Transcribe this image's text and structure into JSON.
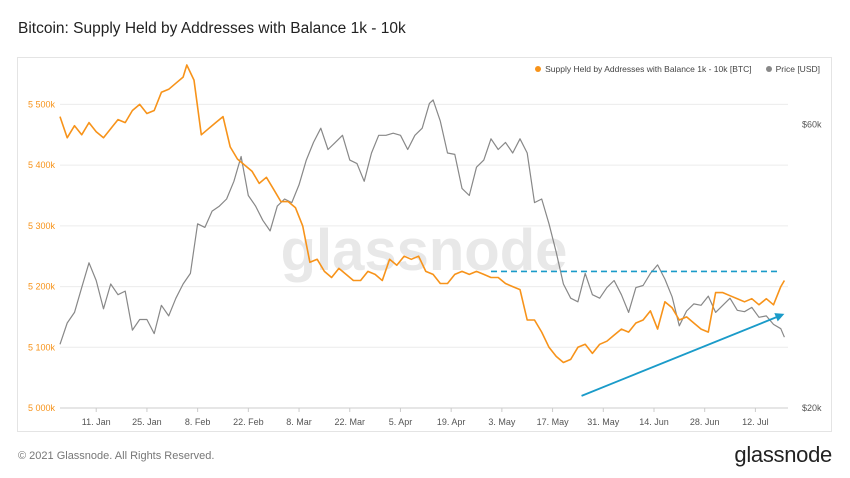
{
  "title": "Bitcoin: Supply Held by Addresses with Balance 1k - 10k",
  "footer": "© 2021 Glassnode. All Rights Reserved.",
  "brand": "glassnode",
  "watermark": "glassnode",
  "colors": {
    "supply": "#f7931a",
    "price": "#888888",
    "accent": "#1a9bc9",
    "grid": "#ececec"
  },
  "legend": {
    "supply_label": "Supply Held by Addresses with Balance 1k - 10k [BTC]",
    "price_label": "Price [USD]"
  },
  "chart_data": {
    "type": "line",
    "x_tick_labels": [
      "11. Jan",
      "25. Jan",
      "8. Feb",
      "22. Feb",
      "8. Mar",
      "22. Mar",
      "5. Apr",
      "19. Apr",
      "3. May",
      "17. May",
      "31. May",
      "14. Jun",
      "28. Jun",
      "12. Jul"
    ],
    "y_left": {
      "ticks": [
        5000000,
        5100000,
        5200000,
        5300000,
        5400000,
        5500000
      ],
      "tick_labels": [
        "5 000k",
        "5 100k",
        "5 200k",
        "5 300k",
        "5 400k",
        "5 500k"
      ],
      "range": [
        5000000,
        5560000
      ]
    },
    "y_right": {
      "ticks": [
        20000,
        60000
      ],
      "tick_labels": [
        "$20k",
        "$60k"
      ],
      "range": [
        20000,
        68000
      ]
    },
    "x_range": [
      "2021-01-01",
      "2021-07-21"
    ],
    "series": [
      {
        "name": "Supply Held by Addresses with Balance 1k - 10k [BTC]",
        "axis": "left",
        "x": [
          "2021-01-01",
          "2021-01-03",
          "2021-01-05",
          "2021-01-07",
          "2021-01-09",
          "2021-01-11",
          "2021-01-13",
          "2021-01-15",
          "2021-01-17",
          "2021-01-19",
          "2021-01-21",
          "2021-01-23",
          "2021-01-25",
          "2021-01-27",
          "2021-01-29",
          "2021-01-31",
          "2021-02-02",
          "2021-02-04",
          "2021-02-05",
          "2021-02-07",
          "2021-02-09",
          "2021-02-11",
          "2021-02-13",
          "2021-02-15",
          "2021-02-17",
          "2021-02-19",
          "2021-02-21",
          "2021-02-23",
          "2021-02-25",
          "2021-02-27",
          "2021-03-01",
          "2021-03-03",
          "2021-03-05",
          "2021-03-07",
          "2021-03-09",
          "2021-03-11",
          "2021-03-13",
          "2021-03-15",
          "2021-03-17",
          "2021-03-19",
          "2021-03-21",
          "2021-03-23",
          "2021-03-25",
          "2021-03-27",
          "2021-03-29",
          "2021-03-31",
          "2021-04-02",
          "2021-04-04",
          "2021-04-06",
          "2021-04-08",
          "2021-04-10",
          "2021-04-12",
          "2021-04-14",
          "2021-04-16",
          "2021-04-18",
          "2021-04-20",
          "2021-04-22",
          "2021-04-24",
          "2021-04-26",
          "2021-04-28",
          "2021-04-30",
          "2021-05-02",
          "2021-05-04",
          "2021-05-06",
          "2021-05-08",
          "2021-05-10",
          "2021-05-12",
          "2021-05-14",
          "2021-05-16",
          "2021-05-18",
          "2021-05-20",
          "2021-05-22",
          "2021-05-24",
          "2021-05-26",
          "2021-05-28",
          "2021-05-30",
          "2021-06-01",
          "2021-06-03",
          "2021-06-05",
          "2021-06-07",
          "2021-06-09",
          "2021-06-11",
          "2021-06-13",
          "2021-06-15",
          "2021-06-17",
          "2021-06-19",
          "2021-06-21",
          "2021-06-23",
          "2021-06-25",
          "2021-06-27",
          "2021-06-29",
          "2021-07-01",
          "2021-07-03",
          "2021-07-05",
          "2021-07-07",
          "2021-07-09",
          "2021-07-11",
          "2021-07-13",
          "2021-07-15",
          "2021-07-17",
          "2021-07-19",
          "2021-07-20"
        ],
        "y": [
          5480000,
          5445000,
          5465000,
          5450000,
          5470000,
          5455000,
          5445000,
          5460000,
          5475000,
          5470000,
          5490000,
          5500000,
          5485000,
          5490000,
          5520000,
          5525000,
          5535000,
          5545000,
          5565000,
          5540000,
          5450000,
          5460000,
          5470000,
          5480000,
          5430000,
          5410000,
          5400000,
          5390000,
          5370000,
          5380000,
          5360000,
          5340000,
          5340000,
          5330000,
          5300000,
          5240000,
          5245000,
          5225000,
          5215000,
          5230000,
          5220000,
          5210000,
          5210000,
          5225000,
          5220000,
          5210000,
          5245000,
          5235000,
          5250000,
          5245000,
          5250000,
          5225000,
          5220000,
          5205000,
          5205000,
          5220000,
          5225000,
          5220000,
          5225000,
          5220000,
          5215000,
          5215000,
          5205000,
          5200000,
          5195000,
          5145000,
          5145000,
          5125000,
          5100000,
          5085000,
          5075000,
          5080000,
          5100000,
          5105000,
          5090000,
          5105000,
          5110000,
          5120000,
          5130000,
          5125000,
          5140000,
          5145000,
          5160000,
          5130000,
          5175000,
          5165000,
          5145000,
          5150000,
          5140000,
          5130000,
          5125000,
          5190000,
          5190000,
          5185000,
          5180000,
          5175000,
          5180000,
          5170000,
          5180000,
          5170000,
          5200000,
          5210000
        ]
      },
      {
        "name": "Price [USD]",
        "axis": "right",
        "x": [
          "2021-01-01",
          "2021-01-03",
          "2021-01-05",
          "2021-01-07",
          "2021-01-09",
          "2021-01-11",
          "2021-01-13",
          "2021-01-15",
          "2021-01-17",
          "2021-01-19",
          "2021-01-21",
          "2021-01-23",
          "2021-01-25",
          "2021-01-27",
          "2021-01-29",
          "2021-01-31",
          "2021-02-02",
          "2021-02-04",
          "2021-02-06",
          "2021-02-08",
          "2021-02-10",
          "2021-02-12",
          "2021-02-14",
          "2021-02-16",
          "2021-02-18",
          "2021-02-20",
          "2021-02-22",
          "2021-02-24",
          "2021-02-26",
          "2021-02-28",
          "2021-03-02",
          "2021-03-04",
          "2021-03-06",
          "2021-03-08",
          "2021-03-10",
          "2021-03-12",
          "2021-03-14",
          "2021-03-16",
          "2021-03-18",
          "2021-03-20",
          "2021-03-22",
          "2021-03-24",
          "2021-03-26",
          "2021-03-28",
          "2021-03-30",
          "2021-04-01",
          "2021-04-03",
          "2021-04-05",
          "2021-04-07",
          "2021-04-09",
          "2021-04-11",
          "2021-04-13",
          "2021-04-14",
          "2021-04-16",
          "2021-04-18",
          "2021-04-20",
          "2021-04-22",
          "2021-04-24",
          "2021-04-26",
          "2021-04-28",
          "2021-04-30",
          "2021-05-02",
          "2021-05-04",
          "2021-05-06",
          "2021-05-08",
          "2021-05-10",
          "2021-05-12",
          "2021-05-14",
          "2021-05-16",
          "2021-05-18",
          "2021-05-20",
          "2021-05-22",
          "2021-05-24",
          "2021-05-26",
          "2021-05-28",
          "2021-05-30",
          "2021-06-01",
          "2021-06-03",
          "2021-06-05",
          "2021-06-07",
          "2021-06-09",
          "2021-06-11",
          "2021-06-13",
          "2021-06-15",
          "2021-06-17",
          "2021-06-19",
          "2021-06-21",
          "2021-06-23",
          "2021-06-25",
          "2021-06-27",
          "2021-06-29",
          "2021-07-01",
          "2021-07-03",
          "2021-07-05",
          "2021-07-07",
          "2021-07-09",
          "2021-07-11",
          "2021-07-13",
          "2021-07-15",
          "2021-07-17",
          "2021-07-19",
          "2021-07-20"
        ],
        "y": [
          29000,
          32000,
          33500,
          37000,
          40500,
          38000,
          34000,
          37500,
          36000,
          36500,
          31000,
          32500,
          32500,
          30500,
          34500,
          33000,
          35500,
          37500,
          39000,
          46000,
          45500,
          47800,
          48500,
          49500,
          52000,
          55500,
          50000,
          48500,
          46500,
          45000,
          48500,
          49500,
          49000,
          51500,
          55000,
          57500,
          59500,
          56500,
          57500,
          58500,
          55000,
          54500,
          52000,
          56000,
          58500,
          58500,
          58800,
          58500,
          56500,
          58500,
          59500,
          63000,
          63500,
          60500,
          56000,
          55800,
          51000,
          50000,
          54000,
          55000,
          58000,
          56500,
          57500,
          56000,
          58000,
          56000,
          49000,
          49500,
          46000,
          42000,
          37500,
          35500,
          35000,
          39000,
          36000,
          35500,
          37000,
          38000,
          36000,
          33500,
          37000,
          37300,
          39000,
          40200,
          38200,
          35700,
          31600,
          33700,
          34700,
          34500,
          35800,
          33500,
          34500,
          35500,
          33800,
          33600,
          34200,
          32800,
          33000,
          31800,
          31200,
          30000
        ]
      }
    ],
    "reference_line": {
      "value": 5225000,
      "axis": "left",
      "from": "2021-04-30",
      "to": "2021-07-19",
      "style": "dashed"
    },
    "trend_arrow": {
      "from": {
        "date": "2021-05-25",
        "value": 5020000
      },
      "to": {
        "date": "2021-07-20",
        "value": 5155000
      }
    }
  }
}
